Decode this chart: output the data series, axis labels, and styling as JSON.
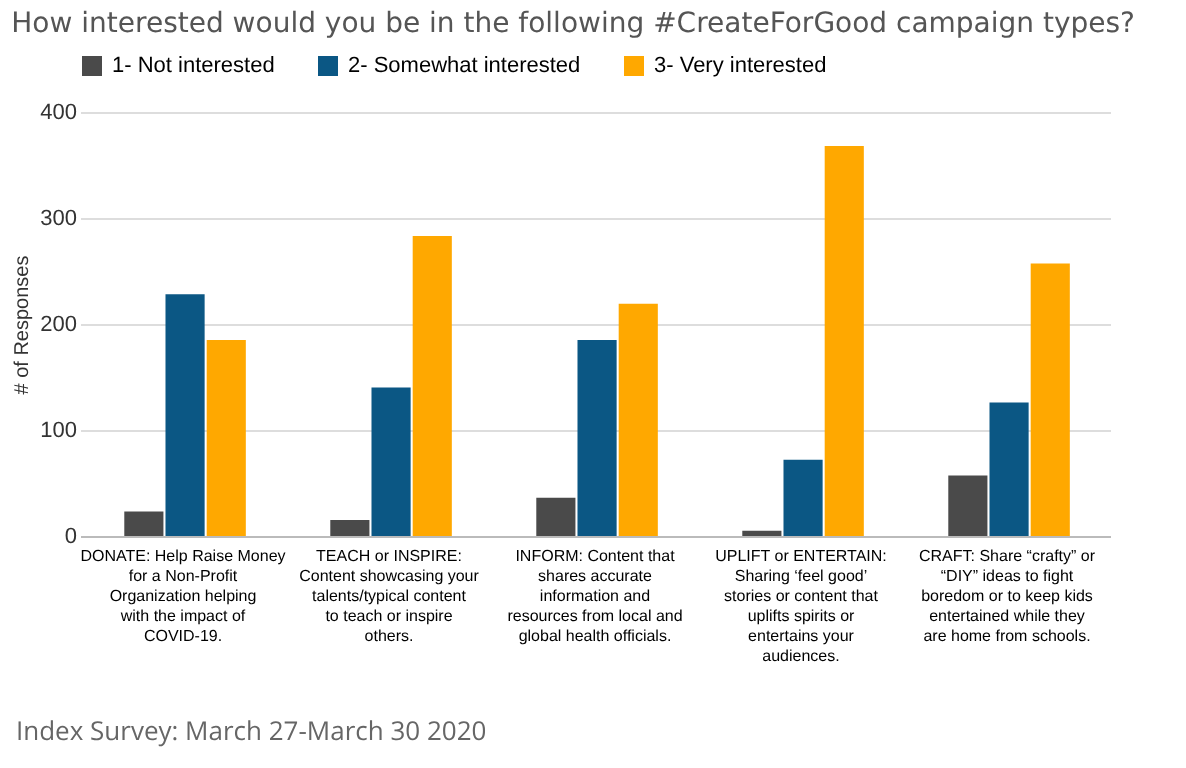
{
  "chart_data": {
    "type": "bar",
    "title": "How interested would you be in the following #CreateForGood campaign types?",
    "ylabel": "# of Responses",
    "categories": [
      "DONATE: Help Raise Money for a Non-Profit Organization helping with the impact of COVID-19.",
      "TEACH or INSPIRE: Content showcasing your talents/typical content to teach or inspire others.",
      "INFORM: Content that shares accurate information and resources from local and global health officials.",
      "UPLIFT or ENTERTAIN: Sharing ‘feel good’ stories or content that uplifts spirits or entertains your audiences.",
      "CRAFT: Share “crafty” or “DIY” ideas to fight boredom or to keep kids entertained while they are home from schools."
    ],
    "series": [
      {
        "name": "1- Not interested",
        "color": "#4a4a4a",
        "values": [
          23,
          15,
          36,
          5,
          57
        ]
      },
      {
        "name": "2- Somewhat interested",
        "color": "#0b5784",
        "values": [
          228,
          140,
          185,
          72,
          126
        ]
      },
      {
        "name": "3- Very interested",
        "color": "#ffa800",
        "values": [
          185,
          283,
          219,
          368,
          257
        ]
      }
    ],
    "ylim": [
      0,
      400
    ],
    "yticks": [
      0,
      100,
      200,
      300,
      400
    ],
    "grid": "y",
    "legend": "top",
    "annotations": [
      "Index Survey: March 27-March 30 2020"
    ]
  }
}
